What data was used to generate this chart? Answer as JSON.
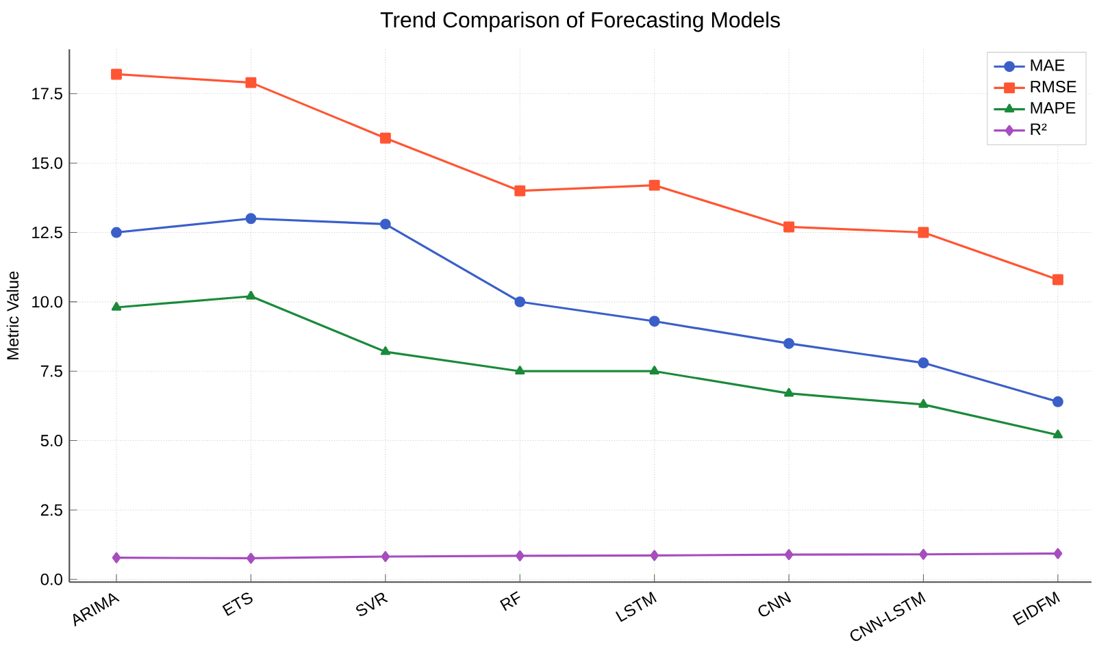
{
  "chart_data": {
    "type": "line",
    "title": "Trend Comparison of Forecasting Models",
    "ylabel": "Metric Value",
    "categories": [
      "ARIMA",
      "ETS",
      "SVR",
      "RF",
      "LSTM",
      "CNN",
      "CNN-LSTM",
      "EIDFM"
    ],
    "series": [
      {
        "name": "MAE",
        "color": "#3a5fc8",
        "marker": "circle",
        "values": [
          12.5,
          13.0,
          12.8,
          10.0,
          9.3,
          8.5,
          7.8,
          6.4
        ]
      },
      {
        "name": "RMSE",
        "color": "#ff5533",
        "marker": "square",
        "values": [
          18.2,
          17.9,
          15.9,
          14.0,
          14.2,
          12.7,
          12.5,
          10.8
        ]
      },
      {
        "name": "MAPE",
        "color": "#1a8a3a",
        "marker": "triangle",
        "values": [
          9.8,
          10.2,
          8.2,
          7.5,
          7.5,
          6.7,
          6.3,
          5.2
        ]
      },
      {
        "name": "R²",
        "color": "#a64dbf",
        "marker": "diamond",
        "values": [
          0.78,
          0.76,
          0.82,
          0.85,
          0.86,
          0.89,
          0.9,
          0.93
        ]
      }
    ],
    "ylim": [
      -0.1,
      19.1
    ],
    "yticks": [
      {
        "value": 0,
        "label": "0.0"
      },
      2.5,
      {
        "value": 5,
        "label": "5.0"
      },
      7.5,
      {
        "value": 10,
        "label": "10.0"
      },
      12.5,
      {
        "value": 15,
        "label": "15.0"
      },
      17.5
    ],
    "grid": true,
    "legend": "top right",
    "line_style": "solid"
  }
}
